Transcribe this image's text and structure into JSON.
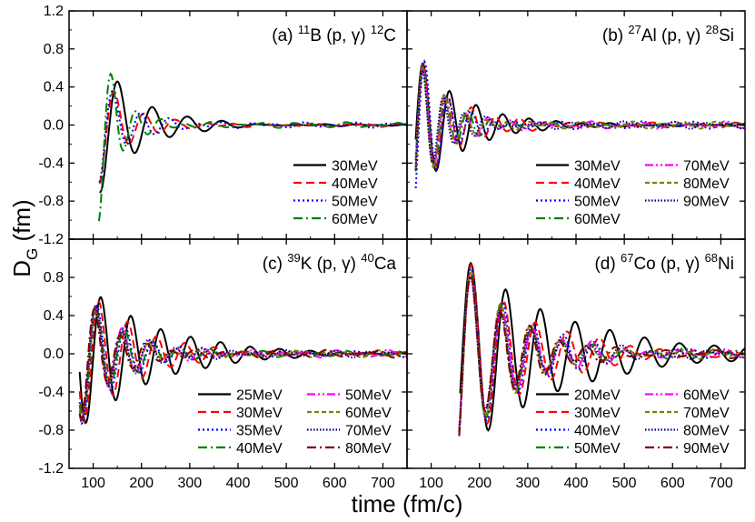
{
  "figure": {
    "ylabel_main": "D",
    "ylabel_sub": "G",
    "ylabel_unit": " (fm)",
    "xlabel": "time (fm/c)"
  },
  "chart_data": [
    {
      "type": "line",
      "panel_label": "(a)",
      "reaction": {
        "target_mass": "11",
        "target": "B",
        "channel": " (p, ",
        "gamma": "γ",
        "close": ") ",
        "product_mass": "12",
        "product": "C"
      },
      "xlim": [
        50,
        750
      ],
      "ylim": [
        -1.2,
        1.2
      ],
      "xticks": [
        100,
        200,
        300,
        400,
        500,
        600,
        700
      ],
      "yticks": [
        -1.2,
        -0.8,
        -0.4,
        0.0,
        0.4,
        0.8,
        1.2
      ],
      "yticklabels": [
        "-1.2",
        "-0.8",
        "-0.4",
        "0.0",
        "0.4",
        "0.8",
        "1.2"
      ],
      "legend": {
        "placement": "lower-right",
        "columns": 1
      },
      "series": [
        {
          "name": "30MeV",
          "color": "#000000",
          "dash": "solid",
          "t0": 113,
          "amp": 0.72,
          "period": 72,
          "decay": 85,
          "phase": -1.8,
          "jitter": 0.01
        },
        {
          "name": "40MeV",
          "color": "#ff0000",
          "dash": "dashed",
          "t0": 113,
          "amp": 0.62,
          "period": 62,
          "decay": 60,
          "phase": -1.6,
          "jitter": 0.02
        },
        {
          "name": "50MeV",
          "color": "#0000ff",
          "dash": "dotted",
          "t0": 113,
          "amp": 0.58,
          "period": 58,
          "decay": 55,
          "phase": -1.5,
          "jitter": 0.03
        },
        {
          "name": "60MeV",
          "color": "#008000",
          "dash": "dashdot",
          "t0": 112,
          "amp": 1.0,
          "period": 52,
          "decay": 40,
          "phase": -1.57,
          "jitter": 0.03
        }
      ]
    },
    {
      "type": "line",
      "panel_label": "(b)",
      "reaction": {
        "target_mass": "27",
        "target": "Al",
        "channel": " (p, ",
        "gamma": "γ",
        "close": ") ",
        "product_mass": "28",
        "product": "Si"
      },
      "xlim": [
        50,
        750
      ],
      "ylim": [
        -1.2,
        1.2
      ],
      "xticks": [
        100,
        200,
        300,
        400,
        500,
        600,
        700
      ],
      "yticks": [
        -1.2,
        -0.8,
        -0.4,
        0.0,
        0.4,
        0.8,
        1.2
      ],
      "yticklabels": [
        "",
        "",
        "",
        "",
        "",
        "",
        ""
      ],
      "legend": {
        "placement": "lower-right",
        "columns": 2
      },
      "series": [
        {
          "name": "30MeV",
          "color": "#000000",
          "dash": "solid",
          "t0": 68,
          "amp": 0.75,
          "period": 55,
          "decay": 95,
          "phase": -0.2,
          "jitter": 0.01
        },
        {
          "name": "40MeV",
          "color": "#ff0000",
          "dash": "dashed",
          "t0": 68,
          "amp": 0.8,
          "period": 50,
          "decay": 75,
          "phase": -0.5,
          "jitter": 0.03
        },
        {
          "name": "50MeV",
          "color": "#0000ff",
          "dash": "dotted",
          "t0": 68,
          "amp": 0.85,
          "period": 48,
          "decay": 65,
          "phase": -0.9,
          "jitter": 0.04
        },
        {
          "name": "60MeV",
          "color": "#008000",
          "dash": "dashdot",
          "t0": 68,
          "amp": 0.8,
          "period": 46,
          "decay": 60,
          "phase": -0.7,
          "jitter": 0.03
        },
        {
          "name": "70MeV",
          "color": "#ff00ff",
          "dash": "dashdotdot",
          "t0": 68,
          "amp": 0.78,
          "period": 45,
          "decay": 60,
          "phase": -0.6,
          "jitter": 0.04
        },
        {
          "name": "80MeV",
          "color": "#808000",
          "dash": "shortdash",
          "t0": 68,
          "amp": 0.78,
          "period": 44,
          "decay": 58,
          "phase": -0.6,
          "jitter": 0.04
        },
        {
          "name": "90MeV",
          "color": "#000080",
          "dash": "shortdot",
          "t0": 68,
          "amp": 0.8,
          "period": 43,
          "decay": 55,
          "phase": -0.6,
          "jitter": 0.04
        }
      ]
    },
    {
      "type": "line",
      "panel_label": "(c)",
      "reaction": {
        "target_mass": "39",
        "target": "K",
        "channel": " (p, ",
        "gamma": "γ",
        "close": ") ",
        "product_mass": "40",
        "product": "Ca"
      },
      "xlim": [
        50,
        750
      ],
      "ylim": [
        -1.2,
        1.2
      ],
      "xticks": [
        100,
        200,
        300,
        400,
        500,
        600,
        700
      ],
      "yticks": [
        -1.2,
        -0.8,
        -0.4,
        0.0,
        0.4,
        0.8,
        1.2
      ],
      "yticklabels": [
        "-1.2",
        "-0.8",
        "-0.4",
        "0.0",
        "0.4",
        "0.8",
        ""
      ],
      "legend": {
        "placement": "lower-right",
        "columns": 2
      },
      "series": [
        {
          "name": "25MeV",
          "color": "#000000",
          "dash": "solid",
          "t0": 72,
          "amp": 0.8,
          "period": 62,
          "decay": 150,
          "phase": -2.9,
          "jitter": 0.01
        },
        {
          "name": "30MeV",
          "color": "#ff0000",
          "dash": "dashed",
          "t0": 72,
          "amp": 0.78,
          "period": 60,
          "decay": 110,
          "phase": -2.6,
          "jitter": 0.02
        },
        {
          "name": "35MeV",
          "color": "#0000ff",
          "dash": "dotted",
          "t0": 72,
          "amp": 0.76,
          "period": 58,
          "decay": 95,
          "phase": -2.4,
          "jitter": 0.03
        },
        {
          "name": "40MeV",
          "color": "#008000",
          "dash": "dashdot",
          "t0": 72,
          "amp": 0.75,
          "period": 57,
          "decay": 85,
          "phase": -2.3,
          "jitter": 0.03
        },
        {
          "name": "50MeV",
          "color": "#ff00ff",
          "dash": "dashdotdot",
          "t0": 72,
          "amp": 0.74,
          "period": 56,
          "decay": 80,
          "phase": -2.2,
          "jitter": 0.04
        },
        {
          "name": "60MeV",
          "color": "#808000",
          "dash": "shortdash",
          "t0": 72,
          "amp": 0.74,
          "period": 55,
          "decay": 78,
          "phase": -2.2,
          "jitter": 0.04
        },
        {
          "name": "70MeV",
          "color": "#000080",
          "dash": "shortdot",
          "t0": 72,
          "amp": 0.74,
          "period": 55,
          "decay": 75,
          "phase": -2.2,
          "jitter": 0.04
        },
        {
          "name": "80MeV",
          "color": "#800000",
          "dash": "dashdot",
          "t0": 72,
          "amp": 0.72,
          "period": 54,
          "decay": 72,
          "phase": -2.1,
          "jitter": 0.04
        }
      ]
    },
    {
      "type": "line",
      "panel_label": "(d)",
      "reaction": {
        "target_mass": "67",
        "target": "Co",
        "channel": " (p, ",
        "gamma": "γ",
        "close": ") ",
        "product_mass": "68",
        "product": "Ni"
      },
      "xlim": [
        50,
        750
      ],
      "ylim": [
        -1.2,
        1.2
      ],
      "xticks": [
        100,
        200,
        300,
        400,
        500,
        600,
        700
      ],
      "yticks": [
        -1.2,
        -0.8,
        -0.4,
        0.0,
        0.4,
        0.8,
        1.2
      ],
      "yticklabels": [
        "",
        "",
        "",
        "",
        "",
        "",
        ""
      ],
      "legend": {
        "placement": "lower-right",
        "columns": 2
      },
      "series": [
        {
          "name": "20MeV",
          "color": "#000000",
          "dash": "solid",
          "t0": 160,
          "amp": 1.05,
          "period": 72,
          "decay": 210,
          "phase": -0.4,
          "jitter": 0.01
        },
        {
          "name": "30MeV",
          "color": "#ff0000",
          "dash": "dashed",
          "t0": 158,
          "amp": 1.1,
          "period": 66,
          "decay": 140,
          "phase": -0.9,
          "jitter": 0.03
        },
        {
          "name": "40MeV",
          "color": "#0000ff",
          "dash": "dotted",
          "t0": 158,
          "amp": 1.1,
          "period": 64,
          "decay": 120,
          "phase": -0.9,
          "jitter": 0.04
        },
        {
          "name": "50MeV",
          "color": "#008000",
          "dash": "dashdot",
          "t0": 158,
          "amp": 1.05,
          "period": 63,
          "decay": 115,
          "phase": -0.9,
          "jitter": 0.04
        },
        {
          "name": "60MeV",
          "color": "#ff00ff",
          "dash": "dashdotdot",
          "t0": 158,
          "amp": 1.05,
          "period": 63,
          "decay": 110,
          "phase": -0.9,
          "jitter": 0.05
        },
        {
          "name": "70MeV",
          "color": "#808000",
          "dash": "shortdash",
          "t0": 158,
          "amp": 1.05,
          "period": 62,
          "decay": 110,
          "phase": -0.9,
          "jitter": 0.05
        },
        {
          "name": "80MeV",
          "color": "#000080",
          "dash": "shortdot",
          "t0": 158,
          "amp": 1.05,
          "period": 62,
          "decay": 105,
          "phase": -0.9,
          "jitter": 0.05
        },
        {
          "name": "90MeV",
          "color": "#800000",
          "dash": "dashdot",
          "t0": 158,
          "amp": 1.05,
          "period": 61,
          "decay": 100,
          "phase": -0.9,
          "jitter": 0.05
        }
      ]
    }
  ]
}
